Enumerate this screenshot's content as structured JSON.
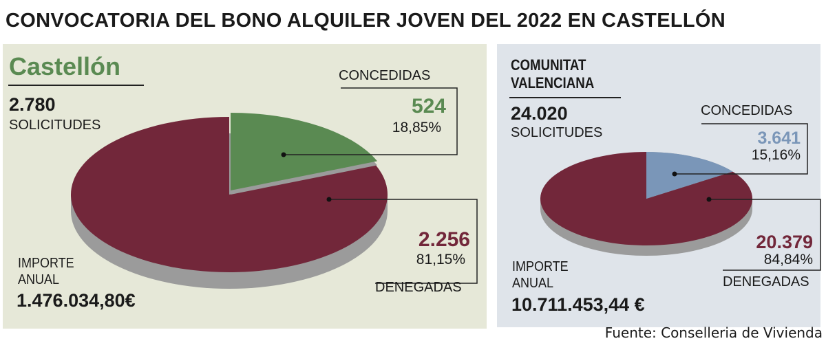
{
  "title": "CONVOCATORIA DEL BONO ALQUILER JOVEN DEL 2022 EN CASTELLÓN",
  "source": "Fuente: Conselleria de Vivienda",
  "colors": {
    "denied": "#72273a",
    "castellon_granted": "#5a8a52",
    "cv_granted": "#7a96b8",
    "side": "#9b9b9b",
    "castellon_bg": "#e6e8d8",
    "cv_bg": "#dfe4ea"
  },
  "chart_data": [
    {
      "type": "pie",
      "title": "Castellón",
      "applications": "2.780",
      "applications_label": "SOLICITUDES",
      "amount_label_1": "IMPORTE",
      "amount_label_2": "ANUAL",
      "amount": "1.476.034,80€",
      "slices": [
        {
          "name": "CONCEDIDAS",
          "value": 524,
          "value_label": "524",
          "percent": 18.85,
          "percent_label": "18,85%"
        },
        {
          "name": "DENEGADAS",
          "value": 2256,
          "value_label": "2.256",
          "percent": 81.15,
          "percent_label": "81,15%"
        }
      ]
    },
    {
      "type": "pie",
      "title": "COMUNITAT VALENCIANA",
      "title_1": "COMUNITAT",
      "title_2": "VALENCIANA",
      "applications": "24.020",
      "applications_label": "SOLICITUDES",
      "amount_label_1": "IMPORTE",
      "amount_label_2": "ANUAL",
      "amount": "10.711.453,44 €",
      "slices": [
        {
          "name": "CONCEDIDAS",
          "value": 3641,
          "value_label": "3.641",
          "percent": 15.16,
          "percent_label": "15,16%"
        },
        {
          "name": "DENEGADAS",
          "value": 20379,
          "value_label": "20.379",
          "percent": 84.84,
          "percent_label": "84,84%"
        }
      ]
    }
  ]
}
